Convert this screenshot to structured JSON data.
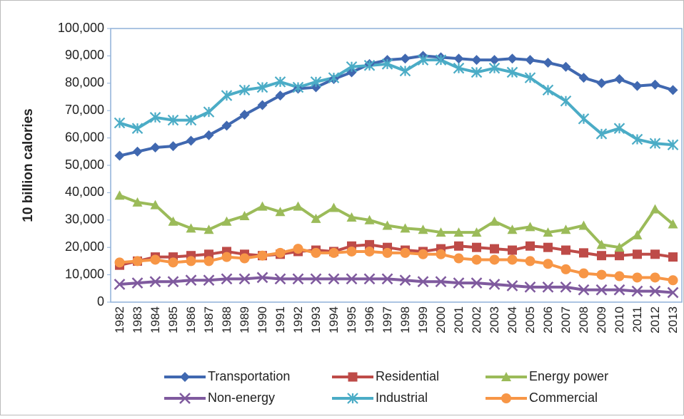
{
  "chart_data": {
    "type": "line",
    "y_label": "10 billion calories",
    "categories": [
      "1982",
      "1983",
      "1984",
      "1985",
      "1986",
      "1987",
      "1988",
      "1989",
      "1990",
      "1991",
      "1992",
      "1993",
      "1994",
      "1995",
      "1996",
      "1997",
      "1998",
      "1999",
      "2000",
      "2001",
      "2002",
      "2003",
      "2004",
      "2005",
      "2006",
      "2007",
      "2008",
      "2009",
      "2010",
      "2011",
      "2012",
      "2013"
    ],
    "ylim": [
      0,
      100000
    ],
    "yticks": [
      0,
      {
        "value": 10000,
        "label": "10,000"
      },
      {
        "value": 20000,
        "label": "20,000"
      },
      {
        "value": 30000,
        "label": "30,000"
      },
      {
        "value": 40000,
        "label": "40,000"
      },
      {
        "value": 50000,
        "label": "50,000"
      },
      {
        "value": 60000,
        "label": "60,000"
      },
      {
        "value": 70000,
        "label": "70,000"
      },
      {
        "value": 80000,
        "label": "80,000"
      },
      {
        "value": 90000,
        "label": "90,000"
      },
      {
        "value": 100000,
        "label": "100,000"
      }
    ],
    "grid": false,
    "legend": "bottom",
    "series": [
      {
        "name": "Transportation",
        "color": "#4068b0",
        "marker": "diamond",
        "values": [
          53500,
          55000,
          56500,
          57000,
          59000,
          61000,
          64500,
          68500,
          72000,
          75500,
          78000,
          78500,
          81500,
          84000,
          87000,
          88500,
          89000,
          90000,
          89500,
          89000,
          88500,
          88500,
          89000,
          88500,
          87500,
          86000,
          82000,
          80000,
          81500,
          79000,
          79500,
          77500
        ]
      },
      {
        "name": "Residential",
        "color": "#be4b48",
        "marker": "square",
        "values": [
          13500,
          15000,
          16500,
          16500,
          17000,
          17500,
          18500,
          17500,
          17000,
          17500,
          18500,
          19000,
          18500,
          20500,
          21000,
          20000,
          19000,
          18500,
          19500,
          20500,
          20000,
          19500,
          19000,
          20500,
          20000,
          19000,
          18000,
          17000,
          17000,
          17500,
          17500,
          16500
        ]
      },
      {
        "name": "Energy power",
        "color": "#9bbb59",
        "marker": "triangle",
        "values": [
          39000,
          36500,
          35500,
          29500,
          27000,
          26500,
          29500,
          31500,
          35000,
          33000,
          35000,
          30500,
          34500,
          31000,
          30000,
          28000,
          27000,
          26500,
          25500,
          25500,
          25500,
          29500,
          26500,
          27500,
          25500,
          26500,
          28000,
          21000,
          20000,
          24500,
          34000,
          28500
        ]
      },
      {
        "name": "Non-energy",
        "color": "#7f5a9e",
        "marker": "x",
        "values": [
          6500,
          7000,
          7500,
          7500,
          8000,
          8000,
          8500,
          8500,
          9000,
          8500,
          8500,
          8500,
          8500,
          8500,
          8500,
          8500,
          8000,
          7500,
          7500,
          7000,
          7000,
          6500,
          6000,
          5500,
          5500,
          5500,
          4500,
          4500,
          4500,
          4000,
          4000,
          3500
        ]
      },
      {
        "name": "Industrial",
        "color": "#4bacc6",
        "marker": "star",
        "values": [
          65500,
          63500,
          67500,
          66500,
          66500,
          69500,
          75500,
          77500,
          78500,
          80500,
          78500,
          80500,
          82000,
          86000,
          86500,
          87000,
          84500,
          88500,
          88500,
          85500,
          84000,
          85500,
          84000,
          82000,
          77500,
          73500,
          67000,
          61500,
          63500,
          59500,
          58000,
          57500
        ]
      },
      {
        "name": "Commercial",
        "color": "#f79646",
        "marker": "circle",
        "values": [
          14500,
          15000,
          15500,
          14500,
          15000,
          15000,
          16500,
          16000,
          17000,
          18000,
          19500,
          18000,
          18000,
          18500,
          18500,
          18000,
          18000,
          17500,
          17500,
          16000,
          15500,
          15500,
          15500,
          15000,
          14000,
          12000,
          10500,
          10000,
          9500,
          9000,
          9000,
          8000
        ]
      }
    ]
  }
}
